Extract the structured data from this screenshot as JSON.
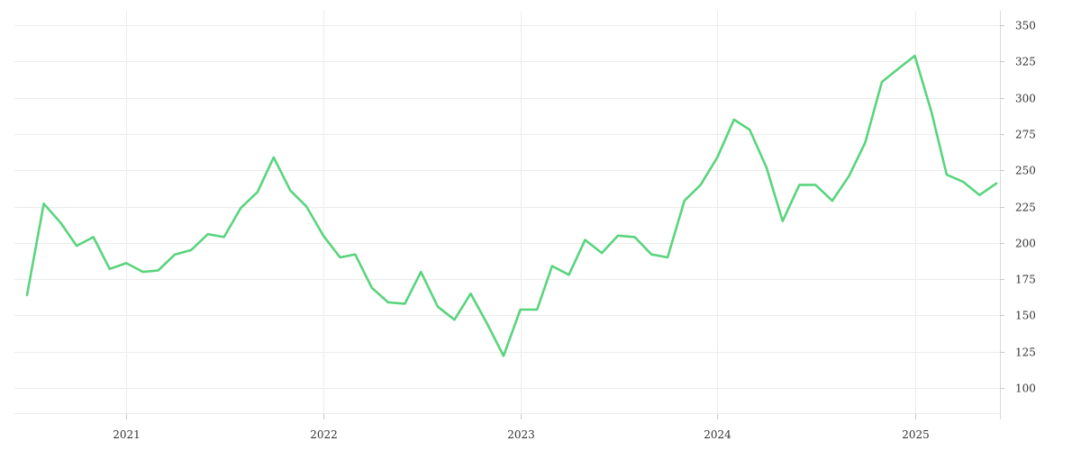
{
  "chart_data": {
    "type": "line",
    "title": "",
    "xlabel": "",
    "ylabel": "",
    "grid": true,
    "y_axis_side": "right",
    "xlim": [
      "2020-07-01",
      "2025-06-01"
    ],
    "ylim": [
      82,
      360
    ],
    "y_ticks": [
      100,
      125,
      150,
      175,
      200,
      225,
      250,
      275,
      300,
      325,
      350
    ],
    "x_ticks": [
      {
        "date": "2021-01-01",
        "label": "2021"
      },
      {
        "date": "2022-01-01",
        "label": "2022"
      },
      {
        "date": "2023-01-01",
        "label": "2023"
      },
      {
        "date": "2024-01-01",
        "label": "2024"
      },
      {
        "date": "2025-01-01",
        "label": "2025"
      }
    ],
    "colors": {
      "line": "#59d47d"
    },
    "series": [
      {
        "x": [
          "2020-07-01",
          "2020-08-01",
          "2020-09-01",
          "2020-10-01",
          "2020-11-01",
          "2020-12-01",
          "2021-01-01",
          "2021-02-01",
          "2021-03-01",
          "2021-04-01",
          "2021-05-01",
          "2021-06-01",
          "2021-07-01",
          "2021-08-01",
          "2021-09-01",
          "2021-10-01",
          "2021-11-01",
          "2021-12-01",
          "2022-01-01",
          "2022-02-01",
          "2022-03-01",
          "2022-04-01",
          "2022-05-01",
          "2022-06-01",
          "2022-07-01",
          "2022-08-01",
          "2022-09-01",
          "2022-10-01",
          "2022-11-01",
          "2022-12-01",
          "2023-01-01",
          "2023-02-01",
          "2023-03-01",
          "2023-04-01",
          "2023-05-01",
          "2023-06-01",
          "2023-07-01",
          "2023-08-01",
          "2023-09-01",
          "2023-10-01",
          "2023-11-01",
          "2023-12-01",
          "2024-01-01",
          "2024-02-01",
          "2024-03-01",
          "2024-04-01",
          "2024-05-01",
          "2024-06-01",
          "2024-07-01",
          "2024-08-01",
          "2024-09-01",
          "2024-10-01",
          "2024-11-01",
          "2024-12-01",
          "2025-01-01",
          "2025-02-01",
          "2025-03-01",
          "2025-04-01",
          "2025-05-01",
          "2025-06-01"
        ],
        "values": [
          164,
          227,
          214,
          198,
          204,
          182,
          186,
          180,
          181,
          192,
          195,
          206,
          204,
          224,
          235,
          259,
          236,
          225,
          205,
          190,
          192,
          169,
          159,
          158,
          180,
          156,
          147,
          165,
          144,
          122,
          154,
          154,
          184,
          178,
          202,
          193,
          205,
          204,
          192,
          190,
          229,
          240,
          259,
          285,
          278,
          252,
          215,
          240,
          240,
          229,
          246,
          269,
          311,
          320,
          329,
          290,
          247,
          242,
          233,
          241
        ]
      }
    ]
  }
}
